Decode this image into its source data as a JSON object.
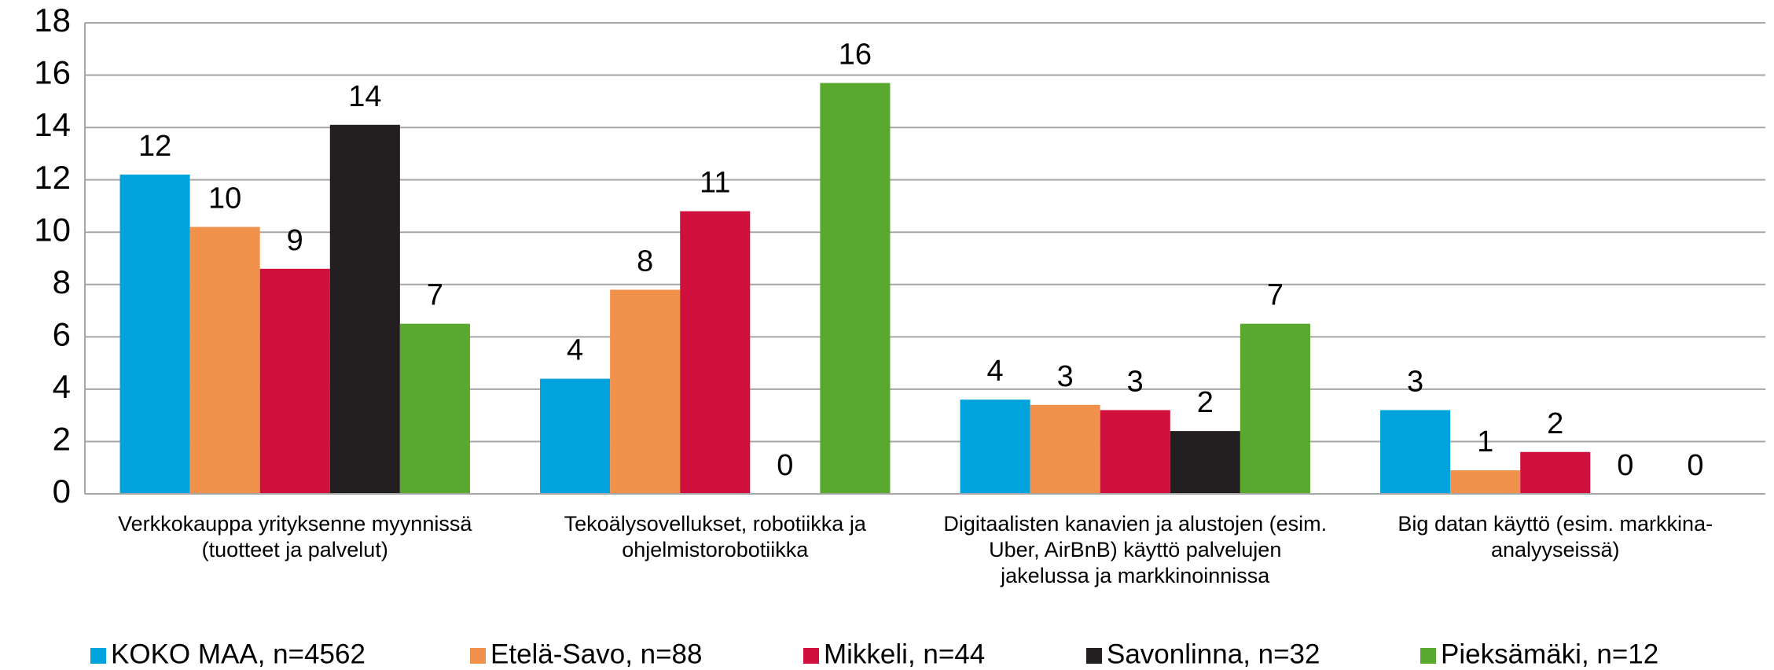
{
  "chart_data": {
    "type": "bar",
    "categories": [
      [
        "Verkkokauppa yrityksenne myynnissä",
        "(tuotteet ja palvelut)"
      ],
      [
        "Tekoälysovellukset, robotiikka ja",
        "ohjelmistorobotiikka"
      ],
      [
        "Digitaalisten kanavien ja alustojen (esim.",
        "Uber, AirBnB) käyttö palvelujen",
        "jakelussa ja markkinoinnissa"
      ],
      [
        "Big datan käyttö (esim. markkina-",
        "analyyseissä)"
      ]
    ],
    "series": [
      {
        "name": "KOKO MAA, n=4562",
        "color": "#00a3db",
        "values": [
          12.2,
          4.4,
          3.6,
          3.2
        ],
        "value_labels": [
          "12",
          "4",
          "4",
          "3"
        ]
      },
      {
        "name": "Etelä-Savo, n=88",
        "color": "#f0924c",
        "values": [
          10.2,
          7.8,
          3.4,
          0.9
        ],
        "value_labels": [
          "10",
          "8",
          "3",
          "1"
        ]
      },
      {
        "name": "Mikkeli, n=44",
        "color": "#cf0f3c",
        "values": [
          8.6,
          10.8,
          3.2,
          1.6
        ],
        "value_labels": [
          "9",
          "11",
          "3",
          "2"
        ]
      },
      {
        "name": "Savonlinna, n=32",
        "color": "#231f20",
        "values": [
          14.1,
          0,
          2.4,
          0
        ],
        "value_labels": [
          "14",
          "0",
          "2",
          "0"
        ]
      },
      {
        "name": "Pieksämäki, n=12",
        "color": "#59a92e",
        "values": [
          6.5,
          15.7,
          6.5,
          0
        ],
        "value_labels": [
          "7",
          "16",
          "7",
          "0"
        ]
      }
    ],
    "ylim": [
      0,
      18
    ],
    "yticks": [
      0,
      2,
      4,
      6,
      8,
      10,
      12,
      14,
      16,
      18
    ],
    "grid": true,
    "legend": "bottom"
  }
}
